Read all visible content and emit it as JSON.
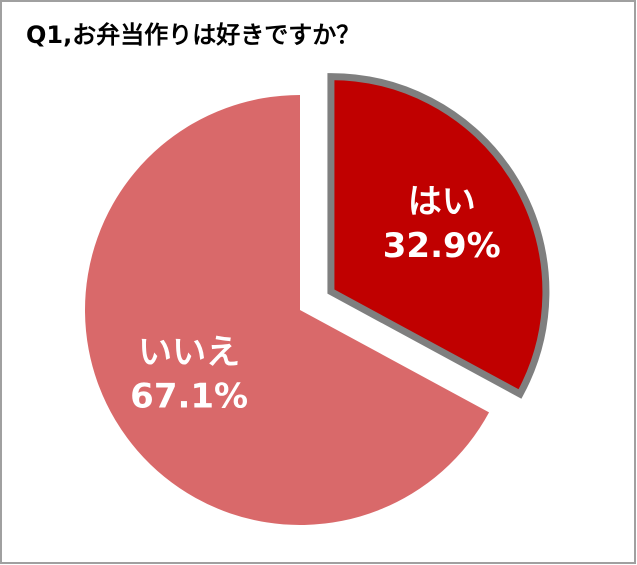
{
  "chart_data": {
    "type": "pie",
    "title": "Q1,お弁当作りは好きですか？",
    "categories": [
      "はい",
      "いいえ"
    ],
    "values": [
      32.9,
      67.1
    ],
    "value_labels": [
      "32.9%",
      "67.1%"
    ],
    "colors": [
      "#c00000",
      "#d9696a"
    ],
    "explode": [
      true,
      false
    ]
  }
}
